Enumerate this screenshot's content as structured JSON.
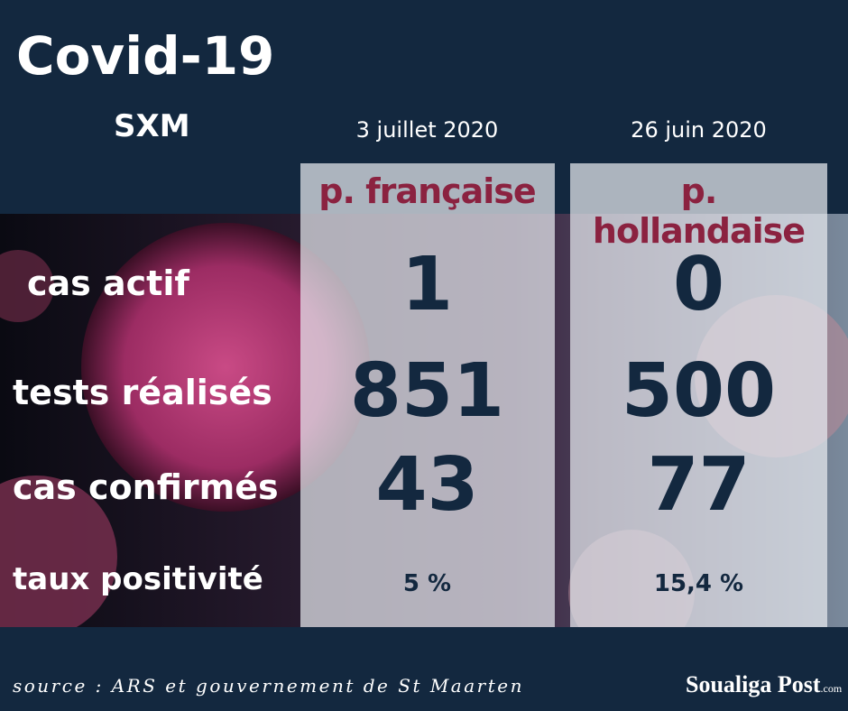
{
  "header": {
    "title": "Covid-19",
    "subtitle": "SXM"
  },
  "columns": [
    {
      "date": "3 juillet 2020",
      "name": "p. française"
    },
    {
      "date": "26 juin 2020",
      "name": "p. hollandaise"
    }
  ],
  "rows": [
    {
      "label": "cas actif",
      "values": [
        "1",
        "0"
      ]
    },
    {
      "label": "tests réalisés",
      "values": [
        "851",
        "500"
      ]
    },
    {
      "label": "cas confirmés",
      "values": [
        "43",
        "77"
      ]
    },
    {
      "label": "taux positivité",
      "values": [
        "5 %",
        "15,4 %"
      ]
    }
  ],
  "footer": {
    "source": "source : ARS et gouvernement de St Maarten",
    "logo": "Soualiga Post",
    "logo_suffix": ".com"
  }
}
